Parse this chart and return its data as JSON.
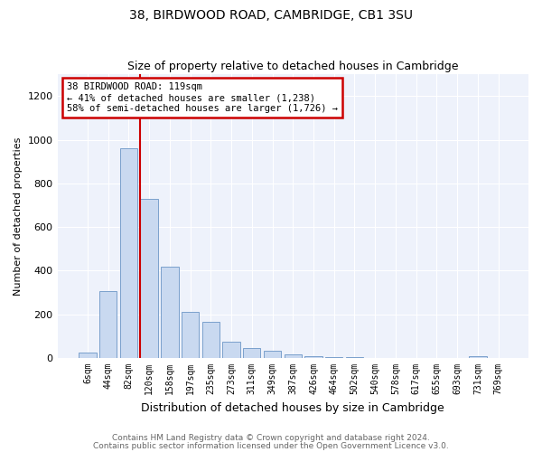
{
  "title": "38, BIRDWOOD ROAD, CAMBRIDGE, CB1 3SU",
  "subtitle": "Size of property relative to detached houses in Cambridge",
  "xlabel": "Distribution of detached houses by size in Cambridge",
  "ylabel": "Number of detached properties",
  "bar_color": "#c9d9f0",
  "bar_edge_color": "#7aa0cc",
  "categories": [
    "6sqm",
    "44sqm",
    "82sqm",
    "120sqm",
    "158sqm",
    "197sqm",
    "235sqm",
    "273sqm",
    "311sqm",
    "349sqm",
    "387sqm",
    "426sqm",
    "464sqm",
    "502sqm",
    "540sqm",
    "578sqm",
    "617sqm",
    "655sqm",
    "693sqm",
    "731sqm",
    "769sqm"
  ],
  "values": [
    25,
    307,
    960,
    730,
    420,
    210,
    165,
    75,
    47,
    32,
    18,
    10,
    5,
    3,
    2,
    2,
    1,
    0,
    0,
    10,
    0
  ],
  "ylim": [
    0,
    1300
  ],
  "yticks": [
    0,
    200,
    400,
    600,
    800,
    1000,
    1200
  ],
  "vline_bar_index": 3,
  "vline_color": "#cc0000",
  "annotation_title": "38 BIRDWOOD ROAD: 119sqm",
  "annotation_line1": "← 41% of detached houses are smaller (1,238)",
  "annotation_line2": "58% of semi-detached houses are larger (1,726) →",
  "annotation_box_color": "#cc0000",
  "footnote1": "Contains HM Land Registry data © Crown copyright and database right 2024.",
  "footnote2": "Contains public sector information licensed under the Open Government Licence v3.0.",
  "plot_bg_color": "#eef2fb"
}
